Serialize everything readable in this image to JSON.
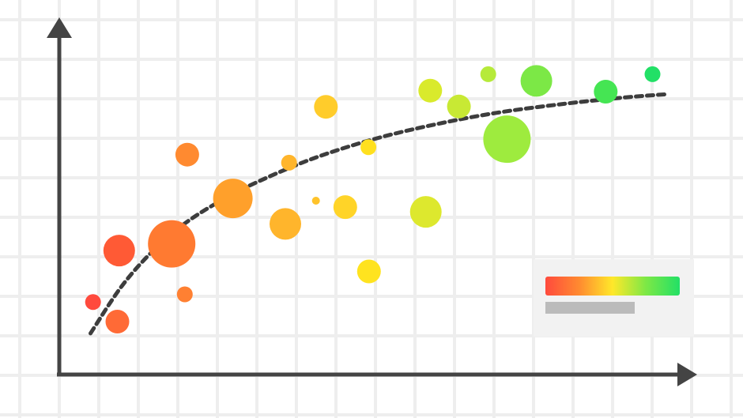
{
  "chart_data": {
    "type": "scatter",
    "title": "",
    "xlabel": "",
    "ylabel": "",
    "xlim": [
      0,
      100
    ],
    "ylim": [
      0,
      100
    ],
    "grid": true,
    "legend": "bottom-right",
    "series": [
      {
        "points": [
          {
            "x": 5.4,
            "y": 21.3,
            "size": 10,
            "color": "#ff4a3d"
          },
          {
            "x": 9.3,
            "y": 15.5,
            "size": 15,
            "color": "#ff6a36"
          },
          {
            "x": 9.6,
            "y": 36.6,
            "size": 20,
            "color": "#ff5a35"
          },
          {
            "x": 18.0,
            "y": 38.6,
            "size": 30,
            "color": "#ff7a31"
          },
          {
            "x": 20.1,
            "y": 23.6,
            "size": 10,
            "color": "#ff8032"
          },
          {
            "x": 20.5,
            "y": 65.1,
            "size": 15,
            "color": "#ff8a30"
          },
          {
            "x": 27.8,
            "y": 52.1,
            "size": 25,
            "color": "#ffa02b"
          },
          {
            "x": 36.2,
            "y": 44.5,
            "size": 20,
            "color": "#ffb52c"
          },
          {
            "x": 36.8,
            "y": 62.7,
            "size": 10,
            "color": "#ffb52c"
          },
          {
            "x": 41.1,
            "y": 51.4,
            "size": 5,
            "color": "#ffc32a"
          },
          {
            "x": 42.7,
            "y": 79.3,
            "size": 15,
            "color": "#ffcc2b"
          },
          {
            "x": 45.8,
            "y": 49.5,
            "size": 15,
            "color": "#ffd428"
          },
          {
            "x": 49.5,
            "y": 67.3,
            "size": 10,
            "color": "#ffe01f"
          },
          {
            "x": 49.6,
            "y": 30.4,
            "size": 15,
            "color": "#ffe31f"
          },
          {
            "x": 58.7,
            "y": 48.1,
            "size": 20,
            "color": "#dde82e"
          },
          {
            "x": 59.4,
            "y": 84.1,
            "size": 15,
            "color": "#d9ea2c"
          },
          {
            "x": 64.0,
            "y": 79.4,
            "size": 15,
            "color": "#c8e934"
          },
          {
            "x": 68.7,
            "y": 89.0,
            "size": 10,
            "color": "#b6ea3a"
          },
          {
            "x": 71.7,
            "y": 69.7,
            "size": 30,
            "color": "#9eeb3e"
          },
          {
            "x": 76.4,
            "y": 87.0,
            "size": 20,
            "color": "#7ce846"
          },
          {
            "x": 87.5,
            "y": 83.8,
            "size": 15,
            "color": "#45e553"
          },
          {
            "x": 95.0,
            "y": 89.0,
            "size": 10,
            "color": "#22e066"
          }
        ],
        "color_scale": [
          "#ff4a3d",
          "#ff8a30",
          "#ffe82a",
          "#7ce846",
          "#22e066"
        ]
      }
    ],
    "trendline": [
      {
        "x": 5.0,
        "y": 12.0
      },
      {
        "x": 10.0,
        "y": 26.0
      },
      {
        "x": 15.0,
        "y": 36.5
      },
      {
        "x": 20.0,
        "y": 44.5
      },
      {
        "x": 25.0,
        "y": 50.5
      },
      {
        "x": 30.0,
        "y": 55.5
      },
      {
        "x": 40.0,
        "y": 63.5
      },
      {
        "x": 50.0,
        "y": 69.5
      },
      {
        "x": 60.0,
        "y": 74.0
      },
      {
        "x": 70.0,
        "y": 77.5
      },
      {
        "x": 80.0,
        "y": 80.0
      },
      {
        "x": 90.0,
        "y": 82.0
      },
      {
        "x": 97.0,
        "y": 83.0
      }
    ],
    "colors": {
      "axis": "#444444",
      "grid": "#eeeeee",
      "trend": "#3d3d3d",
      "legend_bg": "#f2f2f2",
      "legend_bar": "#bbbbbb"
    }
  }
}
